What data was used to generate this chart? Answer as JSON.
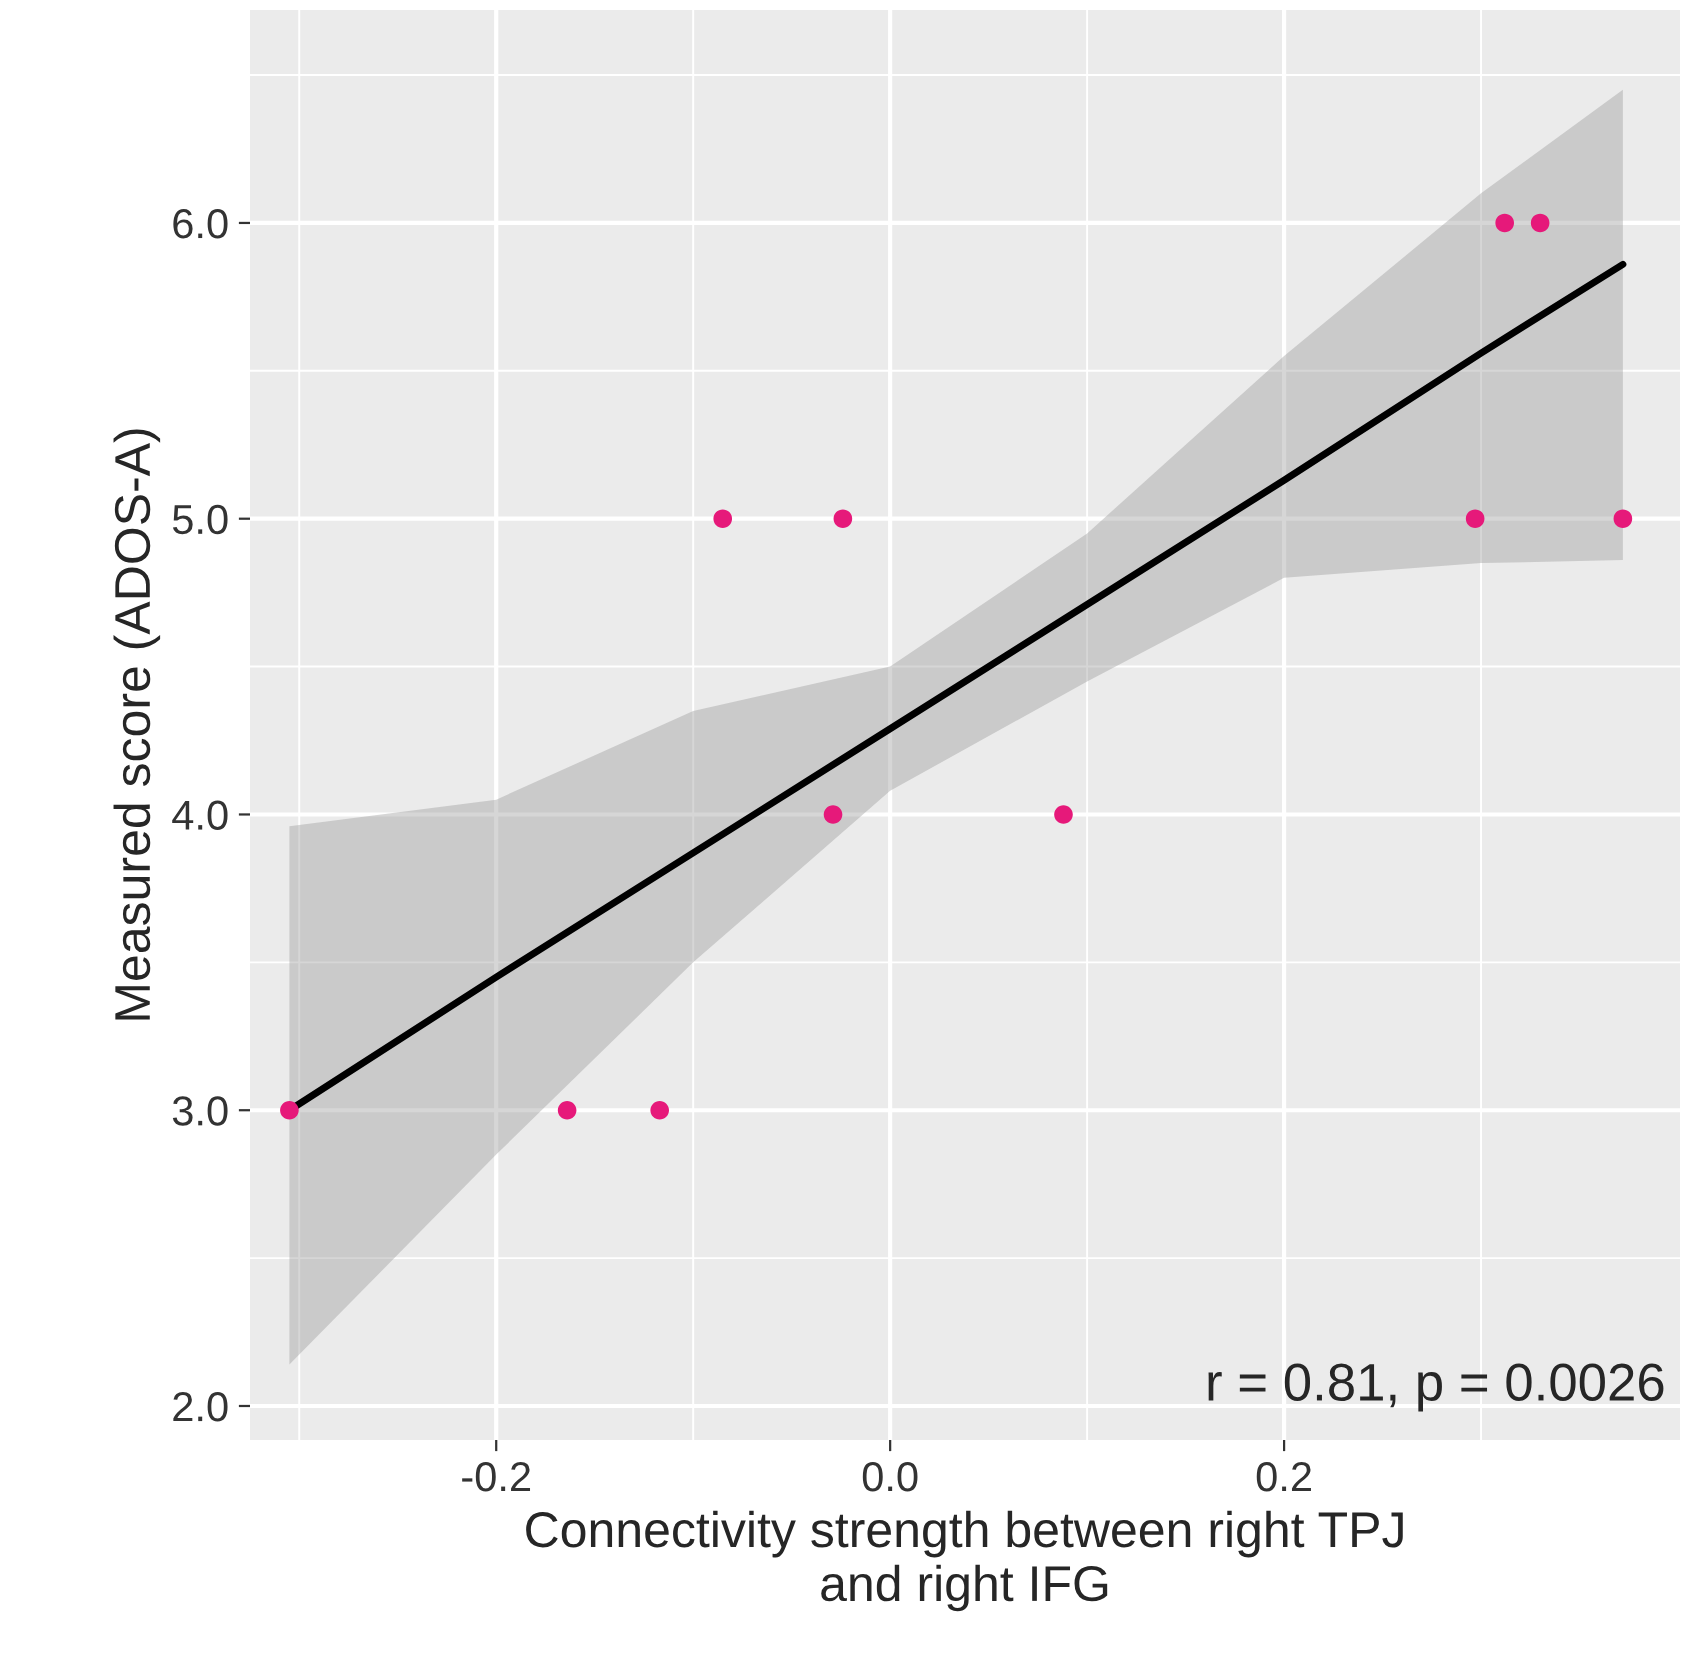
{
  "chart_data": {
    "type": "scatter",
    "xlabel": "Connectivity strength between right TPJ\nand right IFG",
    "ylabel": "Measured score (ADOS-A)",
    "series": [
      {
        "color": "#e6197a",
        "x": [
          -0.305,
          -0.164,
          -0.117,
          -0.085,
          -0.024,
          -0.029,
          0.088,
          0.297,
          0.312,
          0.33,
          0.372
        ],
        "values": [
          3.0,
          3.0,
          3.0,
          5.0,
          5.0,
          4.0,
          4.0,
          5.0,
          6.0,
          6.0,
          5.0
        ]
      },
      {
        "type": "line",
        "color": "#000000",
        "x": [
          -0.305,
          -0.2,
          -0.1,
          0.0,
          0.1,
          0.2,
          0.3,
          0.372
        ],
        "values": [
          3.0,
          3.45,
          3.87,
          4.29,
          4.71,
          5.13,
          5.56,
          5.86
        ],
        "lower": [
          2.14,
          2.85,
          3.5,
          4.08,
          4.45,
          4.8,
          4.85,
          4.86
        ],
        "upper": [
          3.96,
          4.05,
          4.35,
          4.5,
          4.95,
          5.55,
          6.1,
          6.45
        ]
      }
    ],
    "xlim": [
      -0.325,
      0.401
    ],
    "ylim": [
      1.885,
      6.72
    ],
    "xticks": [
      {
        "value": -0.2,
        "label": "-0.2"
      },
      {
        "value": 0.0,
        "label": "0.0"
      },
      {
        "value": 0.2,
        "label": "0.2"
      }
    ],
    "yticks": [
      {
        "value": 2.0,
        "label": "2.0"
      },
      {
        "value": 3.0,
        "label": "3.0"
      },
      {
        "value": 4.0,
        "label": "4.0"
      },
      {
        "value": 5.0,
        "label": "5.0"
      },
      {
        "value": 6.0,
        "label": "6.0"
      }
    ],
    "grid": true,
    "annotations": [
      "r = 0.81, p = 0.0026"
    ]
  }
}
